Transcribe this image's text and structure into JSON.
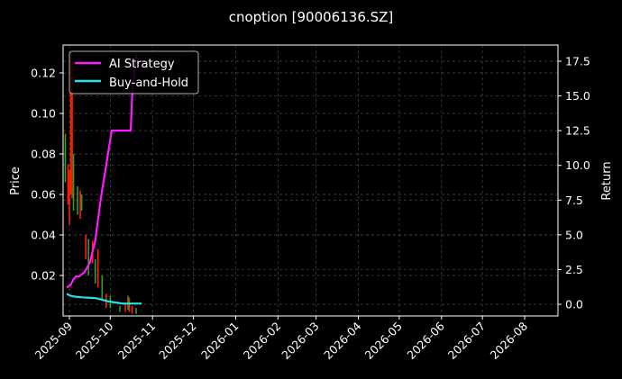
{
  "chart_data": {
    "type": "line",
    "title": "cnoption [90006136.SZ]",
    "xlabel": "",
    "ylabel": "Price",
    "y2label": "Return",
    "x_ticks": [
      "2025-09",
      "2025-10",
      "2025-11",
      "2025-12",
      "2026-01",
      "2026-02",
      "2026-03",
      "2026-04",
      "2026-05",
      "2026-06",
      "2026-07",
      "2026-08"
    ],
    "price_ticks": [
      "0.02",
      "0.04",
      "0.06",
      "0.08",
      "0.10",
      "0.12"
    ],
    "return_ticks": [
      "0.0",
      "2.5",
      "5.0",
      "7.5",
      "10.0",
      "12.5",
      "15.0",
      "17.5"
    ],
    "ylim": [
      0.0,
      0.133
    ],
    "y2lim": [
      -0.9,
      18.5
    ],
    "grid": true,
    "legend_position": "upper left",
    "legend": [
      {
        "name": "AI Strategy",
        "color": "#ff1aff"
      },
      {
        "name": "Buy-and-Hold",
        "color": "#22e5e5"
      }
    ],
    "series": [
      {
        "name": "AI Strategy",
        "axis": "return",
        "color": "#ff1aff",
        "x": [
          "2025-08-30",
          "2025-09-02",
          "2025-09-04",
          "2025-09-06",
          "2025-09-08",
          "2025-09-12",
          "2025-09-16",
          "2025-09-20",
          "2025-09-24",
          "2025-09-28",
          "2025-10-02",
          "2025-10-16",
          "2025-10-17",
          "2025-10-20"
        ],
        "values": [
          1.2,
          1.4,
          1.8,
          2.0,
          2.0,
          2.3,
          3.0,
          4.6,
          7.6,
          10.0,
          12.5,
          12.5,
          15.0,
          18.0
        ]
      },
      {
        "name": "Buy-and-Hold",
        "axis": "return",
        "color": "#22e5e5",
        "x": [
          "2025-08-30",
          "2025-09-02",
          "2025-09-05",
          "2025-09-10",
          "2025-09-20",
          "2025-09-30",
          "2025-10-10",
          "2025-10-24"
        ],
        "values": [
          0.75,
          0.6,
          0.55,
          0.5,
          0.45,
          0.2,
          0.05,
          0.05
        ]
      }
    ],
    "candles_note": "Red/green OHLC candlesticks for price (left axis), concentrated Sep–Oct 2025, peaking near 0.13 early Sep and declining to ~0.002 by late Oct"
  },
  "colors": {
    "background": "#000000",
    "axes": "#ffffff",
    "grid": "#555555",
    "up": "#2ca02c",
    "down": "#ff2200"
  }
}
